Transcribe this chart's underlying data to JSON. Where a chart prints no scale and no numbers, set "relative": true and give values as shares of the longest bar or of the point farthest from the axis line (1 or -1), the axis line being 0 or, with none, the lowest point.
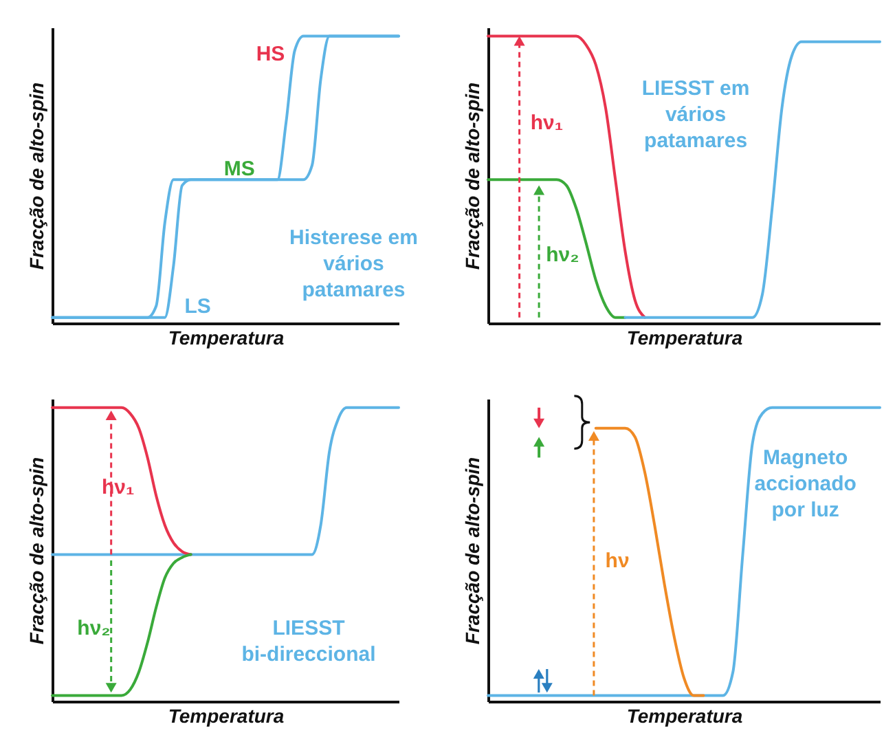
{
  "chart_data": [
    {
      "type": "line",
      "relative": true,
      "xlabel": "Temperatura",
      "ylabel": "Fracção de alto-spin",
      "categories": [
        null,
        null,
        null,
        null,
        null,
        null,
        null,
        null,
        null,
        null,
        null,
        null,
        null,
        null,
        null,
        null,
        null,
        null,
        null,
        null,
        null,
        null,
        null,
        null,
        null,
        null,
        null,
        null,
        null,
        null,
        null,
        null,
        null,
        null,
        null,
        null,
        null,
        null,
        null,
        null,
        null
      ],
      "series": [
        {
          "color": "#5db4e5",
          "values": [
            0.02,
            0.02,
            0.02,
            0.02,
            0.02,
            0.02,
            0.02,
            0.02,
            0.02,
            0.02,
            0.02,
            0.02,
            0.02,
            0.02,
            0.2,
            0.48,
            0.5,
            0.5,
            0.5,
            0.5,
            0.5,
            0.5,
            0.5,
            0.5,
            0.5,
            0.5,
            0.5,
            0.5,
            0.5,
            0.5,
            0.55,
            0.85,
            1,
            1,
            1,
            1,
            1,
            1,
            1,
            1,
            1
          ]
        },
        {
          "color": "#5db4e5",
          "values": [
            0.02,
            0.02,
            0.02,
            0.02,
            0.02,
            0.02,
            0.02,
            0.02,
            0.02,
            0.02,
            0.02,
            0.02,
            0.06,
            0.35,
            0.5,
            0.5,
            0.5,
            0.5,
            0.5,
            0.5,
            0.5,
            0.5,
            0.5,
            0.5,
            0.5,
            0.5,
            0.5,
            0.7,
            0.95,
            1,
            1,
            1,
            1,
            1,
            1,
            1,
            1,
            1,
            1,
            1,
            1
          ]
        }
      ],
      "annotations": [
        "HS",
        "MS",
        "LS",
        "Histerese em\nvários\npatamares"
      ]
    },
    {
      "type": "line",
      "relative": true,
      "xlabel": "Temperatura",
      "ylabel": "Fracção de alto-spin",
      "categories": [
        null,
        null,
        null,
        null,
        null,
        null,
        null,
        null,
        null,
        null,
        null,
        null,
        null,
        null,
        null,
        null,
        null,
        null,
        null,
        null,
        null,
        null,
        null,
        null,
        null,
        null,
        null,
        null,
        null,
        null,
        null,
        null,
        null,
        null,
        null,
        null,
        null,
        null,
        null,
        null,
        null
      ],
      "series": [
        {
          "color": "#e8344e",
          "values": [
            1,
            1,
            1,
            1,
            1,
            1,
            1,
            1,
            1,
            1,
            0.97,
            0.9,
            0.75,
            0.5,
            0.25,
            0.08,
            0.02,
            null,
            null,
            null,
            null,
            null,
            null,
            null,
            null,
            null,
            null,
            null,
            null,
            null,
            null,
            null,
            null,
            null,
            null,
            null,
            null,
            null,
            null,
            null,
            null
          ]
        },
        {
          "color": "#3aaa3a",
          "values": [
            0.5,
            0.5,
            0.5,
            0.5,
            0.5,
            0.5,
            0.5,
            0.5,
            0.48,
            0.4,
            0.28,
            0.15,
            0.06,
            0.02,
            0.02,
            null,
            null,
            null,
            null,
            null,
            null,
            null,
            null,
            null,
            null,
            null,
            null,
            null,
            null,
            null,
            null,
            null,
            null,
            null,
            null,
            null,
            null,
            null,
            null,
            null,
            null
          ]
        },
        {
          "color": "#5db4e5",
          "values": [
            null,
            null,
            null,
            null,
            null,
            null,
            null,
            null,
            null,
            null,
            null,
            null,
            null,
            null,
            0.02,
            0.02,
            0.02,
            0.02,
            0.02,
            0.02,
            0.02,
            0.02,
            0.02,
            0.02,
            0.02,
            0.02,
            0.02,
            0.02,
            0.1,
            0.4,
            0.75,
            0.93,
            0.98,
            0.98,
            0.98,
            0.98,
            0.98,
            0.98,
            0.98,
            0.98,
            0.98
          ]
        }
      ],
      "annotations": [
        "LIESST em\nvários\npatamares",
        "hν₁",
        "hν₂"
      ]
    },
    {
      "type": "line",
      "relative": true,
      "xlabel": "Temperatura",
      "ylabel": "Fracção de alto-spin",
      "categories": [
        null,
        null,
        null,
        null,
        null,
        null,
        null,
        null,
        null,
        null,
        null,
        null,
        null,
        null,
        null,
        null,
        null,
        null,
        null,
        null,
        null,
        null,
        null,
        null,
        null,
        null,
        null,
        null,
        null,
        null,
        null,
        null,
        null,
        null,
        null,
        null,
        null,
        null,
        null,
        null,
        null
      ],
      "series": [
        {
          "color": "#5db4e5",
          "values": [
            0.5,
            0.5,
            0.5,
            0.5,
            0.5,
            0.5,
            0.5,
            0.5,
            0.5,
            0.5,
            0.5,
            0.5,
            0.5,
            0.5,
            0.5,
            0.5,
            0.5,
            0.5,
            0.5,
            0.5,
            0.5,
            0.5,
            0.5,
            0.5,
            0.5,
            0.5,
            0.5,
            0.5,
            0.5,
            0.5,
            0.5,
            0.6,
            0.85,
            0.96,
            1,
            1,
            1,
            1,
            1,
            1,
            1
          ]
        },
        {
          "color": "#e8344e",
          "values": [
            1,
            1,
            1,
            1,
            1,
            1,
            1,
            1,
            1,
            0.98,
            0.93,
            0.83,
            0.7,
            0.6,
            0.54,
            0.51,
            0.5,
            null,
            null,
            null,
            null,
            null,
            null,
            null,
            null,
            null,
            null,
            null,
            null,
            null,
            null,
            null,
            null,
            null,
            null,
            null,
            null,
            null,
            null,
            null,
            null
          ]
        },
        {
          "color": "#3aaa3a",
          "values": [
            0.02,
            0.02,
            0.02,
            0.02,
            0.02,
            0.02,
            0.02,
            0.02,
            0.02,
            0.04,
            0.1,
            0.2,
            0.32,
            0.42,
            0.47,
            0.49,
            0.5,
            null,
            null,
            null,
            null,
            null,
            null,
            null,
            null,
            null,
            null,
            null,
            null,
            null,
            null,
            null,
            null,
            null,
            null,
            null,
            null,
            null,
            null,
            null,
            null
          ]
        }
      ],
      "annotations": [
        "hν₁",
        "hν₂",
        "LIESST\nbi-direccional"
      ]
    },
    {
      "type": "line",
      "relative": true,
      "xlabel": "Temperatura",
      "ylabel": "Fracção de alto-spin",
      "categories": [
        null,
        null,
        null,
        null,
        null,
        null,
        null,
        null,
        null,
        null,
        null,
        null,
        null,
        null,
        null,
        null,
        null,
        null,
        null,
        null,
        null,
        null,
        null,
        null,
        null,
        null,
        null,
        null,
        null,
        null,
        null,
        null,
        null,
        null,
        null,
        null,
        null,
        null,
        null,
        null,
        null
      ],
      "series": [
        {
          "color": "#5db4e5",
          "values": [
            0.02,
            0.02,
            0.02,
            0.02,
            0.02,
            0.02,
            0.02,
            0.02,
            0.02,
            0.02,
            0.02,
            0.02,
            0.02,
            0.02,
            0.02,
            0.02,
            0.02,
            0.02,
            0.02,
            0.02,
            0.02,
            0.02,
            0.02,
            0.02,
            0.02,
            0.1,
            0.5,
            0.88,
            0.98,
            1,
            1,
            1,
            1,
            1,
            1,
            1,
            1,
            1,
            1,
            1,
            1
          ]
        },
        {
          "color": "#f08a24",
          "values": [
            null,
            null,
            null,
            null,
            null,
            null,
            null,
            null,
            null,
            null,
            null,
            0.93,
            0.93,
            0.93,
            0.93,
            0.9,
            0.78,
            0.6,
            0.4,
            0.22,
            0.08,
            0.02,
            0.02,
            null,
            null,
            null,
            null,
            null,
            null,
            null,
            null,
            null,
            null,
            null,
            null,
            null,
            null,
            null,
            null,
            null,
            null
          ]
        }
      ],
      "annotations": [
        "Magneto\naccionado\npor luz",
        "hν"
      ]
    }
  ]
}
